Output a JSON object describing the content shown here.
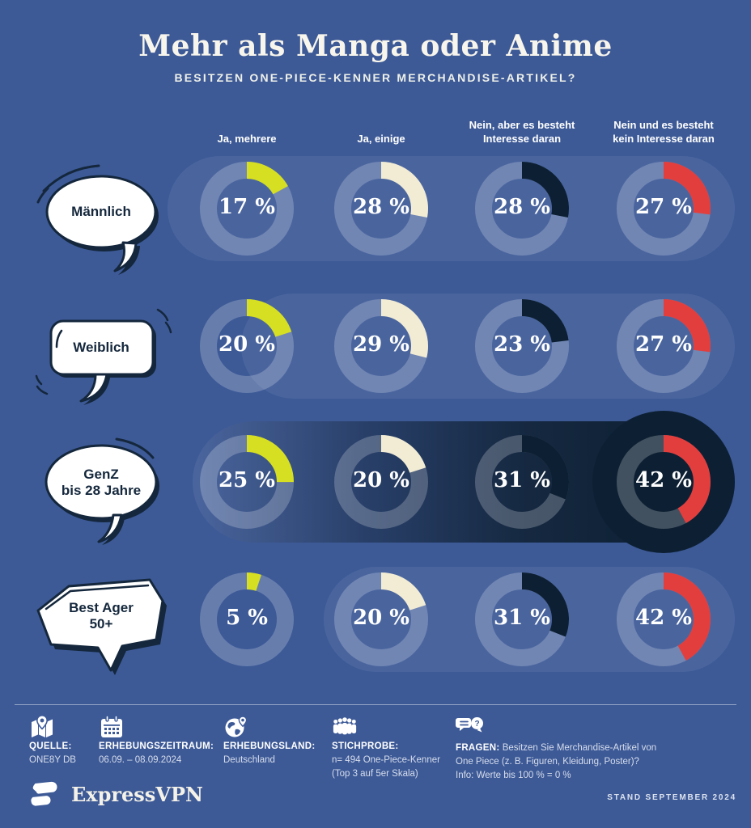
{
  "header": {
    "title": "Mehr als Manga oder Anime",
    "subtitle": "BESITZEN ONE-PIECE-KENNER MERCHANDISE-ARTIKEL?"
  },
  "chart_data": {
    "type": "donut-grid",
    "unit": "%",
    "value_suffix": " %",
    "arc_start": "top",
    "arc_direction": "clockwise",
    "columns": [
      {
        "label_lines": [
          "Ja, mehrere"
        ],
        "color": "#d6df21"
      },
      {
        "label_lines": [
          "Ja, einige"
        ],
        "color": "#f2ecd4"
      },
      {
        "label_lines": [
          "Nein, aber es besteht",
          "Interesse daran"
        ],
        "color": "#0d2033"
      },
      {
        "label_lines": [
          "Nein und es besteht",
          "kein Interesse daran"
        ],
        "color": "#e23e3e"
      }
    ],
    "rows": [
      {
        "group": "Männlich",
        "group_lines": [
          "Männlich"
        ],
        "values": [
          17,
          28,
          28,
          27
        ],
        "highlighted": false
      },
      {
        "group": "Weiblich",
        "group_lines": [
          "Weiblich"
        ],
        "values": [
          20,
          29,
          23,
          27
        ],
        "highlighted": false
      },
      {
        "group": "GenZ bis 28 Jahre",
        "group_lines": [
          "GenZ",
          "bis 28 Jahre"
        ],
        "values": [
          25,
          20,
          31,
          42
        ],
        "highlighted": true
      },
      {
        "group": "Best Ager 50+",
        "group_lines": [
          "Best Ager",
          "50+"
        ],
        "values": [
          5,
          20,
          31,
          42
        ],
        "highlighted": false
      }
    ]
  },
  "footer": {
    "source": {
      "label": "QUELLE:",
      "value": "ONE8Y DB"
    },
    "period": {
      "label": "ERHEBUNGSZEITRAUM:",
      "value": "06.09. – 08.09.2024"
    },
    "country": {
      "label": "ERHEBUNGSLAND:",
      "value": "Deutschland"
    },
    "sample": {
      "label": "STICHPROBE:",
      "value_line1": "n= 494 One-Piece-Kenner",
      "value_line2": "(Top 3 auf 5er Skala)"
    },
    "questions": {
      "label": "FRAGEN:",
      "line1_rest": "Besitzen Sie Merchandise-Artikel von",
      "line2": "One Piece  (z. B. Figuren, Kleidung, Poster)?",
      "line3": "Info: Werte bis 100 % = 0 %"
    }
  },
  "branding": {
    "logo_text": "ExpressVPN",
    "stand": "STAND SEPTEMBER 2024"
  },
  "theme": {
    "background": "#3d5a97",
    "row_band": "rgba(255,255,255,0.07)",
    "donut_track": "rgba(255,255,255,0.22)",
    "highlight_navy": "#0d2033",
    "bubble_fill": "#ffffff",
    "bubble_stroke": "#14273c",
    "text": "#ffffff"
  }
}
